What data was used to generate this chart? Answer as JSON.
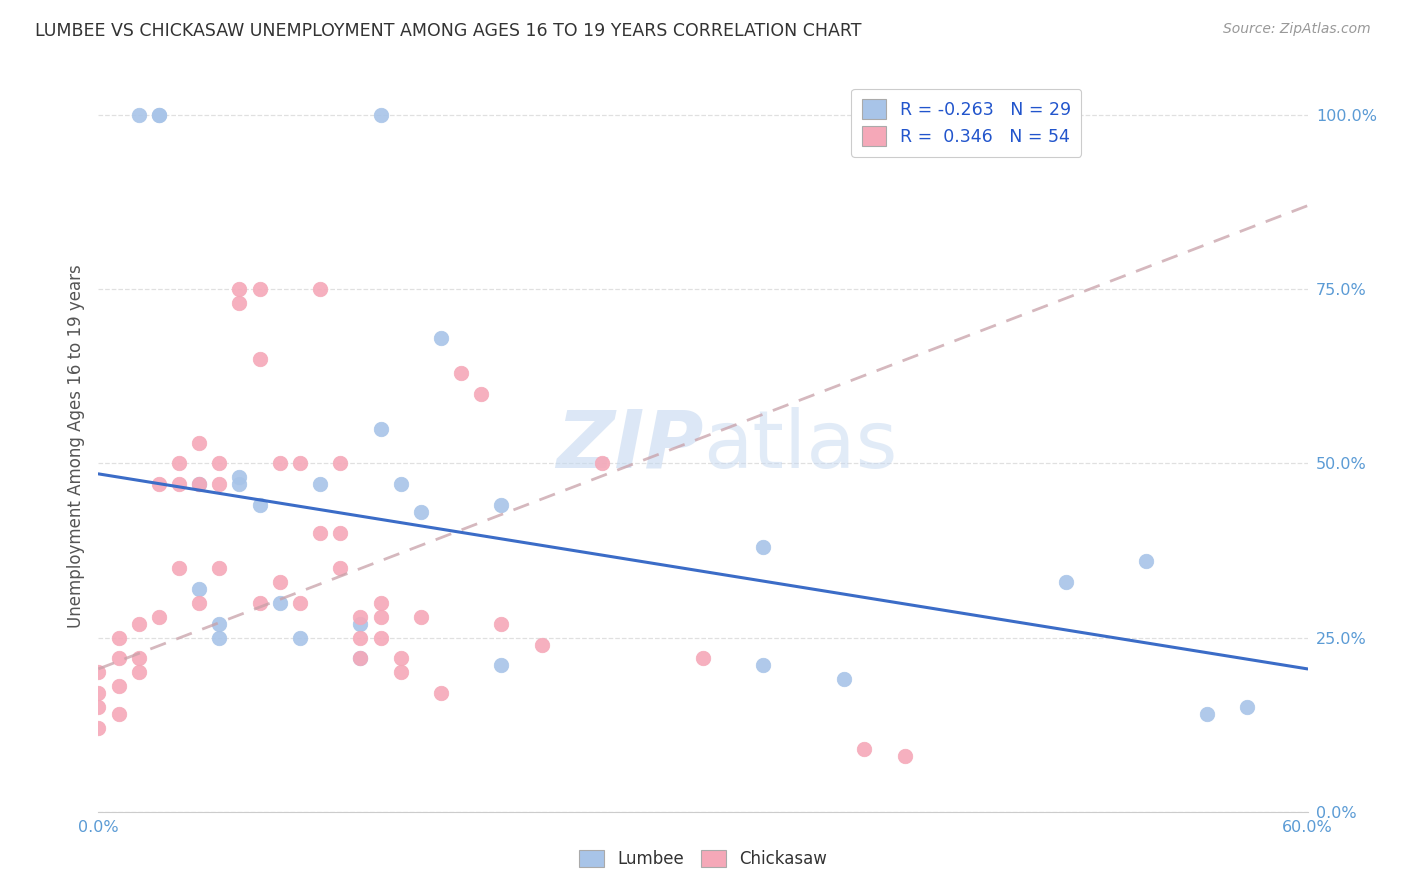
{
  "title": "LUMBEE VS CHICKASAW UNEMPLOYMENT AMONG AGES 16 TO 19 YEARS CORRELATION CHART",
  "source": "Source: ZipAtlas.com",
  "ylabel": "Unemployment Among Ages 16 to 19 years",
  "ytick_labels": [
    "0.0%",
    "25.0%",
    "50.0%",
    "75.0%",
    "100.0%"
  ],
  "ytick_values": [
    0.0,
    0.25,
    0.5,
    0.75,
    1.0
  ],
  "xlim": [
    0.0,
    0.6
  ],
  "ylim": [
    0.0,
    1.05
  ],
  "lumbee_R": "-0.263",
  "lumbee_N": "29",
  "chickasaw_R": "0.346",
  "chickasaw_N": "54",
  "lumbee_color": "#A8C4E8",
  "chickasaw_color": "#F5A8B8",
  "lumbee_line_color": "#3B6CC7",
  "chickasaw_line_color": "#E8607A",
  "watermark_color": "#C5D8F0",
  "lumbee_x": [
    0.02,
    0.03,
    0.03,
    0.14,
    0.05,
    0.05,
    0.06,
    0.06,
    0.07,
    0.08,
    0.09,
    0.1,
    0.11,
    0.13,
    0.13,
    0.14,
    0.15,
    0.16,
    0.17,
    0.2,
    0.2,
    0.33,
    0.33,
    0.37,
    0.48,
    0.52,
    0.55,
    0.57,
    0.07
  ],
  "lumbee_y": [
    1.0,
    1.0,
    1.0,
    1.0,
    0.47,
    0.32,
    0.25,
    0.27,
    0.47,
    0.44,
    0.3,
    0.25,
    0.47,
    0.27,
    0.22,
    0.55,
    0.47,
    0.43,
    0.68,
    0.44,
    0.21,
    0.38,
    0.21,
    0.19,
    0.33,
    0.36,
    0.14,
    0.15,
    0.48
  ],
  "chickasaw_x": [
    0.0,
    0.0,
    0.0,
    0.01,
    0.01,
    0.01,
    0.01,
    0.02,
    0.02,
    0.02,
    0.03,
    0.03,
    0.04,
    0.04,
    0.04,
    0.05,
    0.05,
    0.05,
    0.06,
    0.06,
    0.06,
    0.07,
    0.07,
    0.08,
    0.08,
    0.08,
    0.09,
    0.09,
    0.1,
    0.1,
    0.11,
    0.11,
    0.12,
    0.12,
    0.12,
    0.13,
    0.13,
    0.13,
    0.14,
    0.14,
    0.14,
    0.15,
    0.15,
    0.16,
    0.17,
    0.18,
    0.19,
    0.2,
    0.22,
    0.25,
    0.3,
    0.38,
    0.4,
    0.0
  ],
  "chickasaw_y": [
    0.2,
    0.17,
    0.12,
    0.25,
    0.22,
    0.18,
    0.14,
    0.27,
    0.22,
    0.2,
    0.47,
    0.28,
    0.5,
    0.47,
    0.35,
    0.53,
    0.47,
    0.3,
    0.5,
    0.47,
    0.35,
    0.75,
    0.73,
    0.75,
    0.65,
    0.3,
    0.5,
    0.33,
    0.5,
    0.3,
    0.75,
    0.4,
    0.5,
    0.4,
    0.35,
    0.28,
    0.25,
    0.22,
    0.3,
    0.28,
    0.25,
    0.22,
    0.2,
    0.28,
    0.17,
    0.63,
    0.6,
    0.27,
    0.24,
    0.5,
    0.22,
    0.09,
    0.08,
    0.15
  ],
  "lumbee_trend_x": [
    0.0,
    0.6
  ],
  "lumbee_trend_y": [
    0.485,
    0.205
  ],
  "chickasaw_trend_x": [
    0.0,
    0.6
  ],
  "chickasaw_trend_y": [
    0.205,
    0.87
  ],
  "background_color": "#FFFFFF",
  "grid_color": "#DDDDDD"
}
